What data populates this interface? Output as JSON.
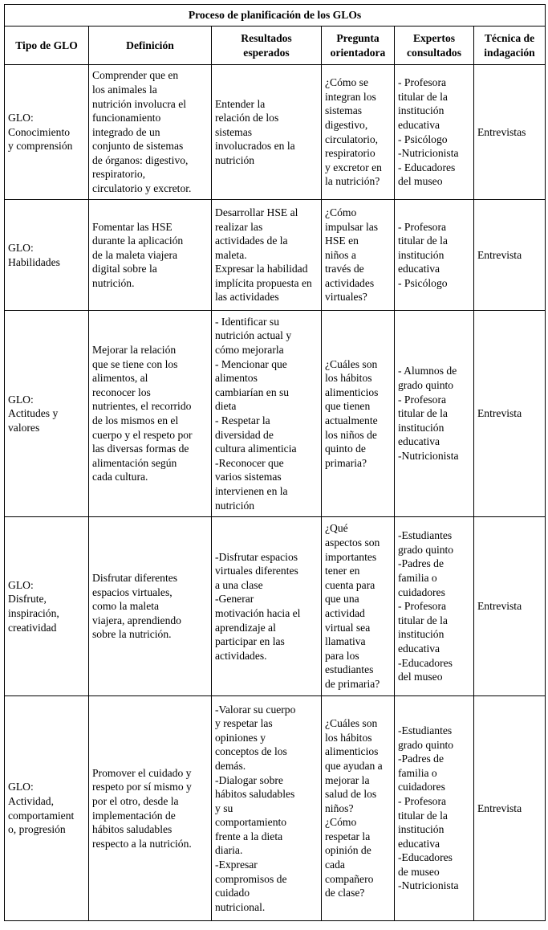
{
  "title": "Proceso de planificación de los GLOs",
  "headers": [
    "Tipo de GLO",
    "Definición",
    "Resultados\nesperados",
    "Pregunta\norientadora",
    "Expertos\nconsultados",
    "Técnica de\nindagación"
  ],
  "rows": [
    {
      "tipo": "GLO:\nConocimiento\ny comprensión",
      "definicion": "Comprender que en\nlos animales la\nnutrición involucra el\nfuncionamiento\nintegrado de un\nconjunto de sistemas\nde órganos: digestivo,\nrespiratorio,\ncirculatorio y excretor.",
      "resultados": "Entender la\nrelación de los\nsistemas\ninvolucrados en la\nnutrición",
      "pregunta": "¿Cómo se\nintegran los\nsistemas\ndigestivo,\ncirculatorio,\nrespiratorio\ny excretor en\nla nutrición?",
      "expertos": "- Profesora\ntitular de la\ninstitución\neducativa\n- Psicólogo\n-Nutricionista\n- Educadores\ndel museo",
      "tecnica": "Entrevistas"
    },
    {
      "tipo": "GLO:\nHabilidades",
      "definicion": "Fomentar las HSE\ndurante la aplicación\nde la maleta viajera\ndigital sobre la\nnutrición.",
      "resultados": "Desarrollar HSE al\nrealizar las\nactividades de la\nmaleta.\nExpresar la habilidad\nimplícita propuesta en\nlas actividades",
      "pregunta": "¿Cómo\nimpulsar las\nHSE en\nniños a\ntravés de\nactividades\nvirtuales?",
      "expertos": "- Profesora\ntitular de la\ninstitución\neducativa\n- Psicólogo",
      "tecnica": "Entrevista"
    },
    {
      "tipo": "GLO:\nActitudes y\nvalores",
      "definicion": "Mejorar la relación\nque se tiene con los\nalimentos, al\nreconocer los\nnutrientes, el recorrido\nde los mismos en el\ncuerpo y el respeto por\nlas diversas formas de\nalimentación según\ncada cultura.",
      "resultados": "- Identificar su\nnutrición actual y\ncómo mejorarla\n- Mencionar que\nalimentos\ncambiarían en su\ndieta\n- Respetar la\ndiversidad de\ncultura alimenticia\n-Reconocer que\nvarios sistemas\nintervienen en la\nnutrición",
      "pregunta": "¿Cuáles son\nlos hábitos\nalimenticios\nque tienen\nactualmente\nlos niños de\nquinto de\nprimaria?",
      "expertos": "- Alumnos de\ngrado quinto\n- Profesora\ntitular de la\ninstitución\neducativa\n-Nutricionista",
      "tecnica": "Entrevista"
    },
    {
      "tipo": "GLO:\nDisfrute,\ninspiración,\ncreatividad",
      "definicion": "Disfrutar diferentes\nespacios virtuales,\ncomo la maleta\nviajera, aprendiendo\nsobre la nutrición.",
      "resultados": "-Disfrutar espacios\nvirtuales diferentes\na una clase\n-Generar\nmotivación hacia el\naprendizaje al\nparticipar en las\nactividades.",
      "pregunta": "¿Qué\naspectos son\nimportantes\ntener en\ncuenta para\nque una\nactividad\nvirtual sea\nllamativa\npara los\nestudiantes\nde primaria?",
      "expertos": "-Estudiantes\ngrado quinto\n-Padres de\nfamilia o\ncuidadores\n- Profesora\ntitular de la\ninstitución\neducativa\n-Educadores\ndel museo",
      "tecnica": "Entrevista"
    },
    {
      "tipo": "GLO:\nActividad,\ncomportamient\no, progresión",
      "definicion": "Promover el cuidado y\nrespeto por sí mismo y\npor el otro, desde la\nimplementación de\nhábitos saludables\nrespecto a la nutrición.",
      "resultados": "-Valorar su cuerpo\ny respetar las\nopiniones y\nconceptos de los\ndemás.\n-Dialogar sobre\nhábitos saludables\ny su\ncomportamiento\nfrente a la dieta\ndiaria.\n-Expresar\ncompromisos de\ncuidado\nnutricional.",
      "pregunta": "¿Cuáles son\nlos hábitos\nalimenticios\nque ayudan a\nmejorar la\nsalud de los\nniños?\n¿Cómo\nrespetar la\nopinión de\ncada\ncompañero\nde clase?",
      "expertos": "-Estudiantes\ngrado quinto\n-Padres de\nfamilia o\ncuidadores\n- Profesora\ntitular de la\ninstitución\neducativa\n-Educadores\nde museo\n-Nutricionista",
      "tecnica": "Entrevista"
    }
  ]
}
